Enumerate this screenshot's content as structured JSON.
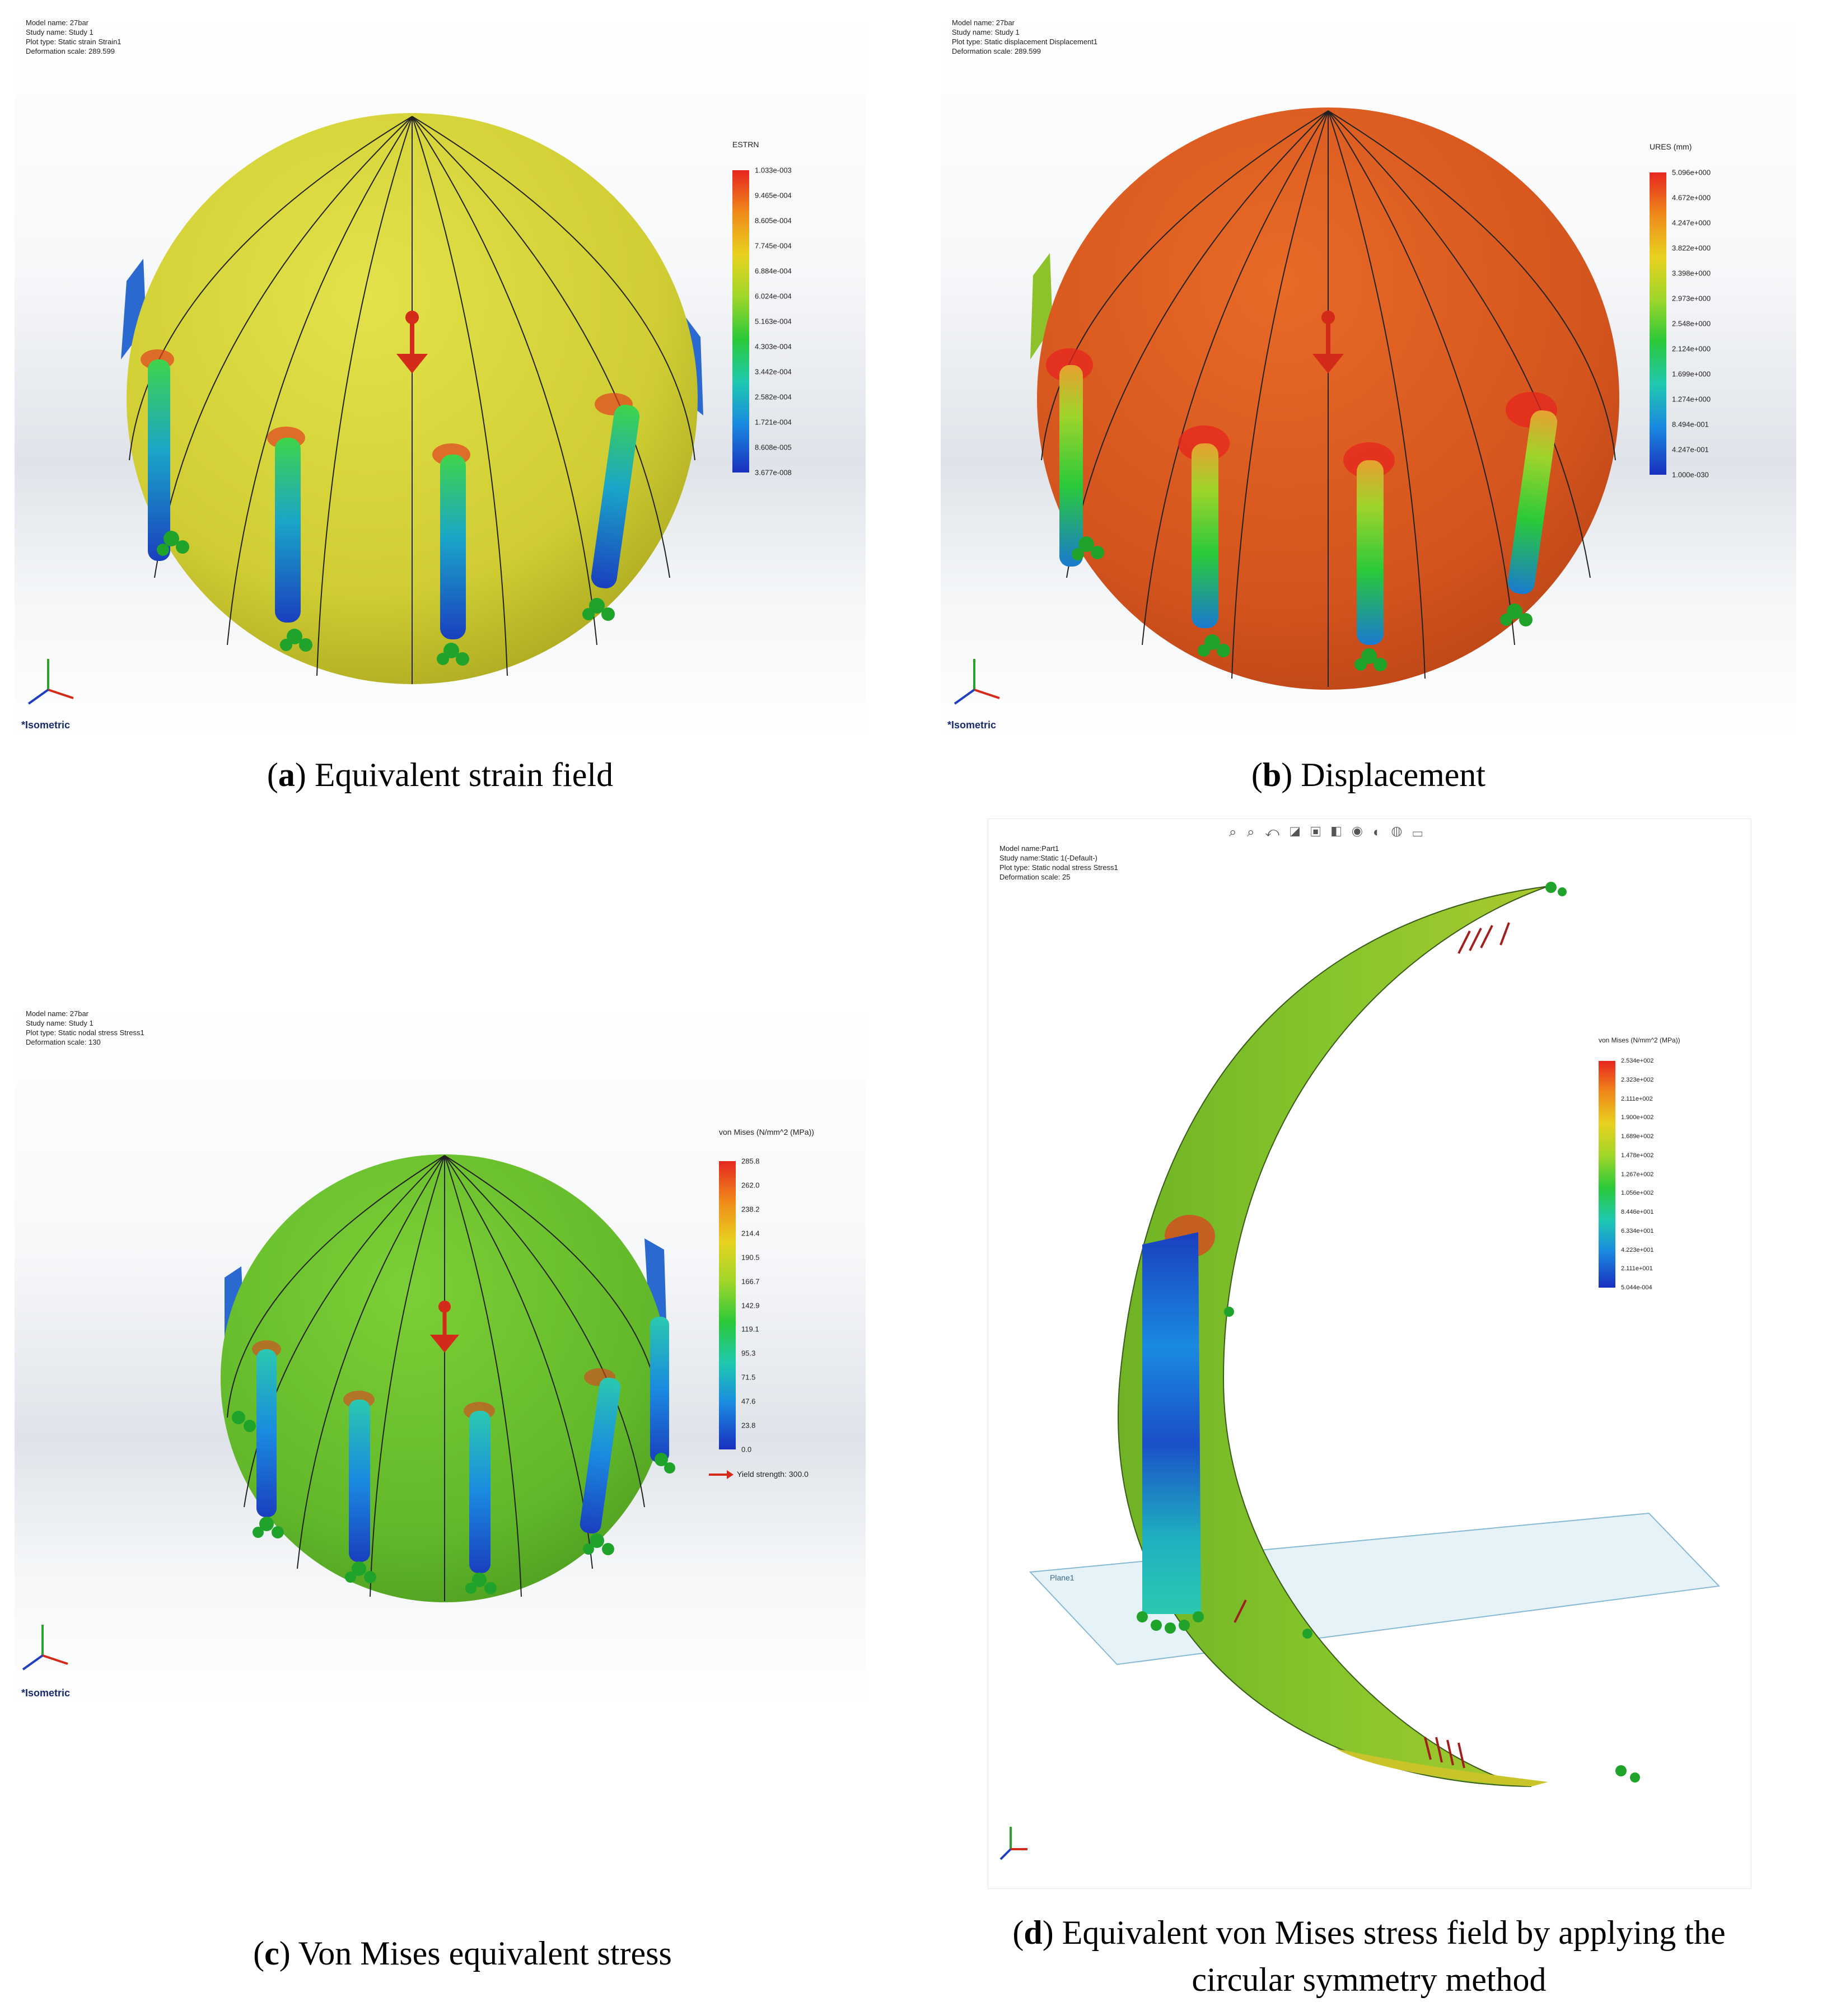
{
  "panels": [
    {
      "id": "a",
      "info": [
        "Model name: 27bar",
        "Study name: Study 1",
        "Plot type: Static strain Strain1",
        "Deformation scale: 289.599"
      ],
      "legend_title": "ESTRN",
      "legend_values": [
        "1.033e-003",
        "9.465e-004",
        "8.605e-004",
        "7.745e-004",
        "6.884e-004",
        "6.024e-004",
        "5.163e-004",
        "4.303e-004",
        "3.442e-004",
        "2.582e-004",
        "1.721e-004",
        "8.608e-005",
        "3.677e-008"
      ],
      "view_label": "*Isometric",
      "caption_letter": "a",
      "caption_text": " Equivalent strain field",
      "sphere_color": "#d6d43a"
    },
    {
      "id": "b",
      "info": [
        "Model name: 27bar",
        "Study name: Study 1",
        "Plot type: Static displacement Displacement1",
        "Deformation scale: 289.599"
      ],
      "legend_title": "URES (mm)",
      "legend_values": [
        "5.096e+000",
        "4.672e+000",
        "4.247e+000",
        "3.822e+000",
        "3.398e+000",
        "2.973e+000",
        "2.548e+000",
        "2.124e+000",
        "1.699e+000",
        "1.274e+000",
        "8.494e-001",
        "4.247e-001",
        "1.000e-030"
      ],
      "view_label": "*Isometric",
      "caption_letter": "b",
      "caption_text": " Displacement",
      "sphere_color": "#dc5a22"
    },
    {
      "id": "c",
      "info": [
        "Model name: 27bar",
        "Study name: Study 1",
        "Plot type: Static nodal stress Stress1",
        "Deformation scale: 130"
      ],
      "legend_title": "von Mises (N/mm^2 (MPa))",
      "legend_values": [
        "285.8",
        "262.0",
        "238.2",
        "214.4",
        "190.5",
        "166.7",
        "142.9",
        "119.1",
        "95.3",
        "71.5",
        "47.6",
        "23.8",
        "0.0"
      ],
      "yield_label": "Yield strength: 300.0",
      "view_label": "*Isometric",
      "caption_letter": "c",
      "caption_text": " Von Mises equivalent stress",
      "sphere_color": "#6bbf2e"
    },
    {
      "id": "d",
      "info": [
        "Model name:Part1",
        "Study name:Static 1(-Default-)",
        "Plot type: Static nodal stress Stress1",
        "Deformation scale: 25"
      ],
      "legend_title": "von Mises (N/mm^2 (MPa))",
      "legend_values": [
        "2.534e+002",
        "2.323e+002",
        "2.111e+002",
        "1.900e+002",
        "1.689e+002",
        "1.478e+002",
        "1.267e+002",
        "1.056e+002",
        "8.446e+001",
        "6.334e+001",
        "4.223e+001",
        "2.111e+001",
        "5.044e-004"
      ],
      "plane_label": "Plane1",
      "caption_letter": "d",
      "caption_text_line1": " Equivalent von Mises stress field by applying the",
      "caption_text_line2": "circular symmetry method",
      "shell_color": "#7fbf2a"
    }
  ],
  "toolbar_icons": [
    "zoom-fit-icon",
    "zoom-area-icon",
    "previous-view-icon",
    "section-view-icon",
    "view-orientation-icon",
    "display-style-icon",
    "hide-show-icon",
    "edit-appearance-icon",
    "apply-scene-icon",
    "view-settings-icon"
  ],
  "toolbar_glyphs": "⌕ ⌕ ↶ ◪ ▣ ◧ ◉ ◐ ◍ ▭"
}
